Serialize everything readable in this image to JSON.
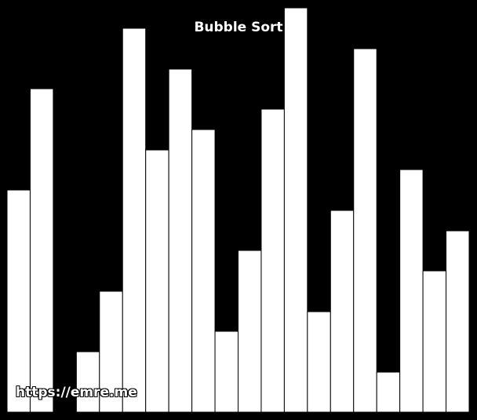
{
  "title": "Bubble Sort",
  "watermark": "https://emre.me",
  "colors": {
    "background": "#000000",
    "bar_fill": "#ffffff",
    "bar_stroke": "#000000",
    "text": "#ffffff"
  },
  "chart_data": {
    "type": "bar",
    "values": [
      283,
      412,
      0,
      77,
      154,
      489,
      334,
      437,
      360,
      103,
      206,
      386,
      515,
      128,
      257,
      463,
      51,
      309,
      180,
      231
    ],
    "ylim": [
      0,
      515
    ]
  }
}
